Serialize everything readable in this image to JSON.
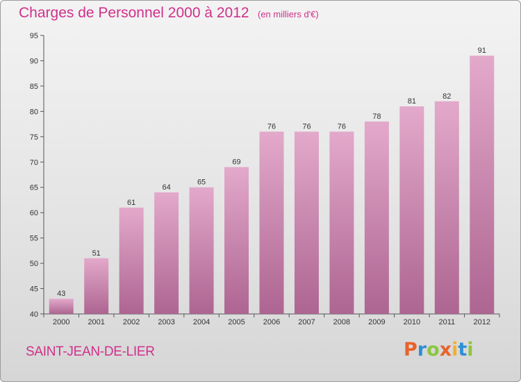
{
  "header": {
    "title": "Charges de Personnel 2000 à 2012",
    "subtitle": "(en milliers d'€)"
  },
  "footer": {
    "place": "SAINT-JEAN-DE-LIER",
    "logo_text": "Proxiti"
  },
  "colors": {
    "accent": "#d0308a",
    "bar_top": "#e3a9cb",
    "bar_bottom": "#ad6591",
    "logo": [
      "#e8632b",
      "#2e8fd6",
      "#8cc63f",
      "#e8632b",
      "#f2b02d",
      "#2e8fd6",
      "#8cc63f"
    ]
  },
  "chart_data": {
    "type": "bar",
    "categories": [
      "2000",
      "2001",
      "2002",
      "2003",
      "2004",
      "2005",
      "2006",
      "2007",
      "2008",
      "2009",
      "2010",
      "2011",
      "2012"
    ],
    "values": [
      43,
      51,
      61,
      64,
      65,
      69,
      76,
      76,
      76,
      78,
      81,
      82,
      91
    ],
    "value_labels": [
      "43",
      "51",
      "61",
      "64",
      "65",
      "69",
      "76",
      "76",
      "76",
      "78",
      "81",
      "82",
      "91"
    ],
    "title": "Charges de Personnel 2000 à 2012",
    "xlabel": "",
    "ylabel": "",
    "ylim": [
      40,
      95
    ],
    "yticks": [
      40,
      45,
      50,
      55,
      60,
      65,
      70,
      75,
      80,
      85,
      90,
      95
    ],
    "ytick_labels": [
      "40",
      "45",
      "50",
      "55",
      "60",
      "65",
      "70",
      "75",
      "80",
      "85",
      "90",
      "95"
    ],
    "grid": false,
    "legend": "none"
  }
}
